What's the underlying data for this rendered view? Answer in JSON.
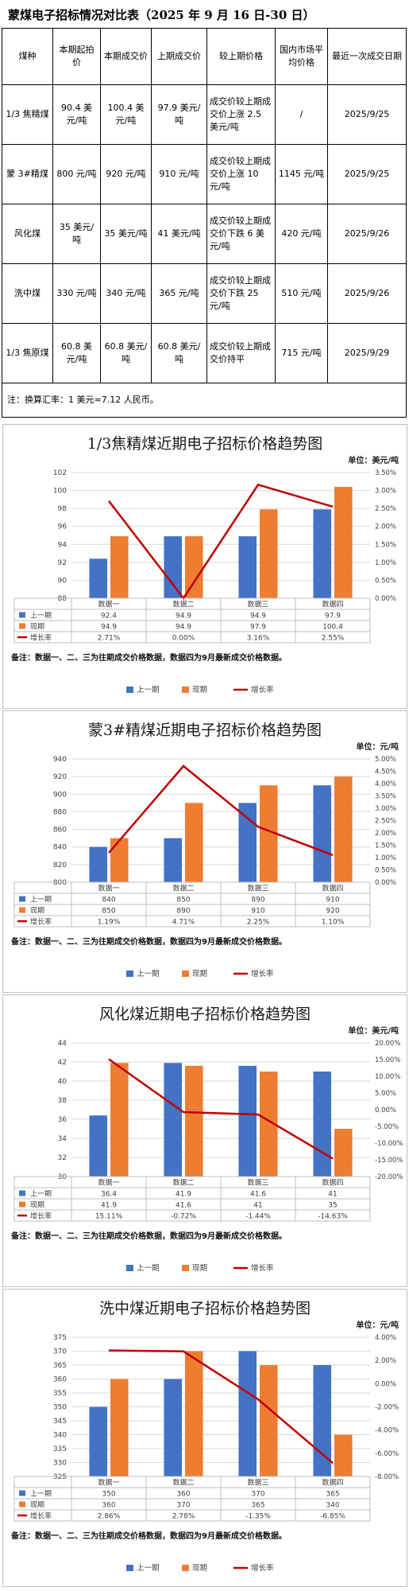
{
  "table": {
    "title": "蒙煤电子招标情况对比表（2025 年 9 月 16 日-30 日）",
    "headers": [
      "煤种",
      "本期起拍价",
      "本期成交价",
      "上期成交价",
      "较上期价格",
      "国内市场平均价格",
      "最近一次成交日期"
    ],
    "rows": [
      [
        "1/3 焦精煤",
        "90.4 美元/吨",
        "100.4 美元/吨",
        "97.9 美元/吨",
        "成交价较上期成交价上涨 2.5 美元/吨",
        "/",
        "2025/9/25"
      ],
      [
        "蒙 3#精煤",
        "800 元/吨",
        "920 元/吨",
        "910 元/吨",
        "成交价较上期成交价上涨 10 元/吨",
        "1145 元/吨",
        "2025/9/25"
      ],
      [
        "风化煤",
        "35 美元/吨",
        "35 美元/吨",
        "41 美元/吨",
        "成交价较上期成交价下跌 6 美元/吨",
        "420 元/吨",
        "2025/9/26"
      ],
      [
        "洗中煤",
        "330 元/吨",
        "340 元/吨",
        "365 元/吨",
        "成交价较上期成交价下跌 25 元/吨",
        "510 元/吨",
        "2025/9/26"
      ],
      [
        "1/3 焦原煤",
        "60.8 美元/吨",
        "60.8 美元/吨",
        "60.8 美元/吨",
        "成交价较上期成交价持平",
        "715 元/吨",
        "2025/9/29"
      ]
    ],
    "note": "注：换算汇率：1 美元≈7.12 人民币。"
  },
  "chart_data": [
    {
      "type": "bar",
      "title": "1/3焦精煤近期电子招标价格趋势图",
      "unit": "单位：美元/吨",
      "categories": [
        "数据一",
        "数据二",
        "数据三",
        "数据四"
      ],
      "series": [
        {
          "name": "上一期",
          "values": [
            92.4,
            94.9,
            94.9,
            97.9
          ],
          "labels": [
            "92.4",
            "94.9",
            "94.9",
            "97.9"
          ]
        },
        {
          "name": "现期",
          "values": [
            94.9,
            94.9,
            97.9,
            100.4
          ],
          "labels": [
            "94.9",
            "94.9",
            "97.9",
            "100.4"
          ]
        },
        {
          "name": "增长率",
          "values": [
            2.71,
            0.0,
            3.16,
            2.55
          ],
          "labels": [
            "2.71%",
            "0.00%",
            "3.16%",
            "2.55%"
          ]
        }
      ],
      "ylim": [
        88,
        102
      ],
      "yticks": [
        "88",
        "90",
        "92",
        "94",
        "96",
        "98",
        "100",
        "102"
      ],
      "y2lim": [
        0,
        3.5
      ],
      "y2ticks": [
        "0.00%",
        "0.50%",
        "1.00%",
        "1.50%",
        "2.00%",
        "2.50%",
        "3.00%",
        "3.50%"
      ],
      "grid": true,
      "legend": "bottom",
      "note": "备注：数据一、二、三为往期成交价格数据，数据四为9月最新成交价格数据。"
    },
    {
      "type": "bar",
      "title": "蒙3#精煤近期电子招标价格趋势图",
      "unit": "单位：元/吨",
      "categories": [
        "数据一",
        "数据二",
        "数据三",
        "数据四"
      ],
      "series": [
        {
          "name": "上一期",
          "values": [
            840,
            850,
            890,
            910
          ],
          "labels": [
            "840",
            "850",
            "890",
            "910"
          ]
        },
        {
          "name": "现期",
          "values": [
            850,
            890,
            910,
            920
          ],
          "labels": [
            "850",
            "890",
            "910",
            "920"
          ]
        },
        {
          "name": "增长率",
          "values": [
            1.19,
            4.71,
            2.25,
            1.1
          ],
          "labels": [
            "1.19%",
            "4.71%",
            "2.25%",
            "1.10%"
          ]
        }
      ],
      "ylim": [
        800,
        940
      ],
      "yticks": [
        "800",
        "820",
        "840",
        "860",
        "880",
        "900",
        "920",
        "940"
      ],
      "y2lim": [
        0,
        5
      ],
      "y2ticks": [
        "0.00%",
        "0.50%",
        "1.00%",
        "1.50%",
        "2.00%",
        "2.50%",
        "3.00%",
        "3.50%",
        "4.00%",
        "4.50%",
        "5.00%"
      ],
      "grid": true,
      "legend": "bottom",
      "note": "备注：数据一、二、三为往期成交价格数据，数据四为9月最新成交价格数据。"
    },
    {
      "type": "bar",
      "title": "风化煤近期电子招标价格趋势图",
      "unit": "单位：美元/吨",
      "categories": [
        "数据一",
        "数据二",
        "数据三",
        "数据四"
      ],
      "series": [
        {
          "name": "上一期",
          "values": [
            36.4,
            41.9,
            41.6,
            41
          ],
          "labels": [
            "36.4",
            "41.9",
            "41.6",
            "41"
          ]
        },
        {
          "name": "现期",
          "values": [
            41.9,
            41.6,
            41,
            35
          ],
          "labels": [
            "41.9",
            "41.6",
            "41",
            "35"
          ]
        },
        {
          "name": "增长率",
          "values": [
            15.11,
            -0.72,
            -1.44,
            -14.63
          ],
          "labels": [
            "15.11%",
            "-0.72%",
            "-1.44%",
            "-14.63%"
          ]
        }
      ],
      "ylim": [
        30,
        44
      ],
      "yticks": [
        "30",
        "32",
        "34",
        "36",
        "38",
        "40",
        "42",
        "44"
      ],
      "y2lim": [
        -20,
        20
      ],
      "y2ticks": [
        "-20.00%",
        "-15.00%",
        "-10.00%",
        "-5.00%",
        "0.00%",
        "5.00%",
        "10.00%",
        "15.00%",
        "20.00%"
      ],
      "grid": true,
      "legend": "bottom",
      "note": "备注：数据一、二、三为往期成交价格数据，数据四为9月最新成交价格数据。"
    },
    {
      "type": "bar",
      "title": "洗中煤近期电子招标价格趋势图",
      "unit": "单位：元/吨",
      "categories": [
        "数据一",
        "数据二",
        "数据三",
        "数据四"
      ],
      "series": [
        {
          "name": "上一期",
          "values": [
            350,
            360,
            370,
            365
          ],
          "labels": [
            "350",
            "360",
            "370",
            "365"
          ]
        },
        {
          "name": "现期",
          "values": [
            360,
            370,
            365,
            340
          ],
          "labels": [
            "360",
            "370",
            "365",
            "340"
          ]
        },
        {
          "name": "增长率",
          "values": [
            2.86,
            2.78,
            -1.35,
            -6.85
          ],
          "labels": [
            "2.86%",
            "2.78%",
            "-1.35%",
            "-6.85%"
          ]
        }
      ],
      "ylim": [
        325,
        375
      ],
      "yticks": [
        "325",
        "330",
        "335",
        "340",
        "345",
        "350",
        "355",
        "360",
        "365",
        "370",
        "375"
      ],
      "y2lim": [
        -8,
        4
      ],
      "y2ticks": [
        "-8.00%",
        "-6.00%",
        "-4.00%",
        "-2.00%",
        "0.00%",
        "2.00%",
        "4.00%"
      ],
      "grid": true,
      "legend": "bottom",
      "note": "备注：数据一、二、三为往期成交价格数据，数据四为9月最新成交价格数据。"
    }
  ],
  "colors": {
    "prev": "#4472c4",
    "curr": "#ed7d31",
    "rate": "#c00000",
    "grid": "#d9d9d9",
    "axis_text": "#404040"
  }
}
